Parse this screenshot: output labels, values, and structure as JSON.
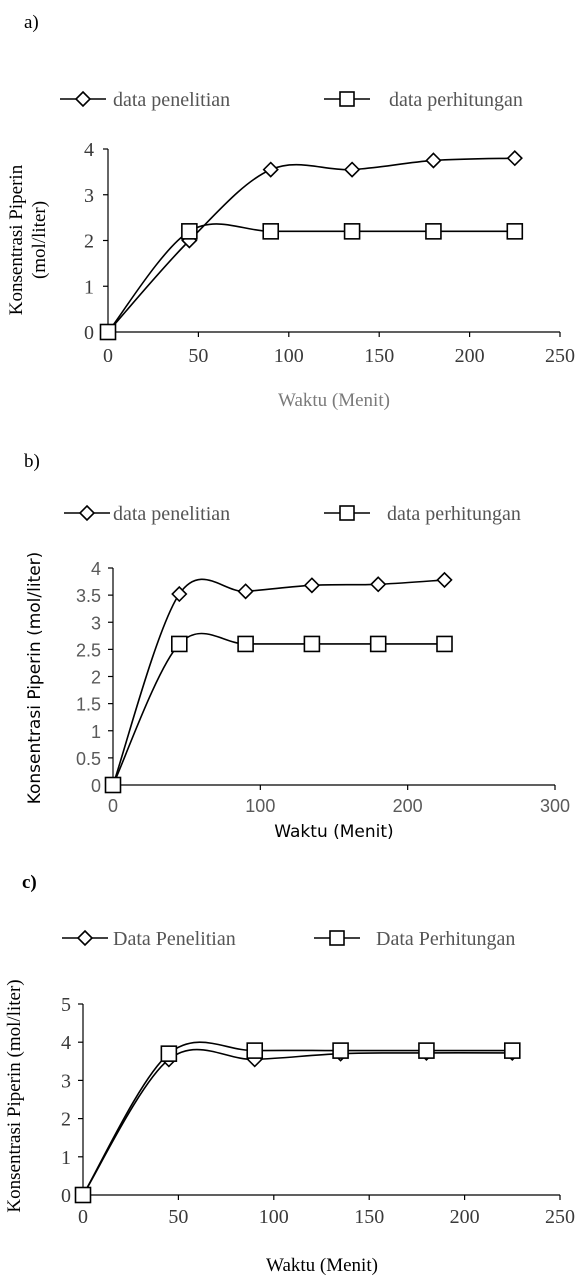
{
  "chart_data": [
    {
      "panel": "a)",
      "type": "line",
      "x": [
        0,
        45,
        90,
        135,
        180,
        225
      ],
      "series": [
        {
          "name": "data penelitian",
          "marker": "diamond",
          "values": [
            0,
            2.0,
            3.55,
            3.55,
            3.75,
            3.8
          ]
        },
        {
          "name": "data perhitungan",
          "marker": "square",
          "values": [
            0,
            2.2,
            2.2,
            2.2,
            2.2,
            2.2
          ]
        }
      ],
      "xlabel": "Waktu (Menit)",
      "ylabel": [
        "Konsentrasi Piperin",
        "(mol/liter)"
      ],
      "xlim": [
        0,
        250
      ],
      "ylim": [
        0,
        4
      ],
      "xticks": [
        "0",
        "50",
        "100",
        "150",
        "200",
        "250"
      ],
      "yticks": [
        "0",
        "1",
        "2",
        "3",
        "4"
      ],
      "grid": false,
      "legend": "top",
      "smooth": true
    },
    {
      "panel": "b)",
      "type": "line",
      "x": [
        0,
        45,
        90,
        135,
        180,
        225
      ],
      "series": [
        {
          "name": "data penelitian",
          "marker": "diamond",
          "values": [
            0,
            3.52,
            3.57,
            3.68,
            3.7,
            3.78
          ]
        },
        {
          "name": "data perhitungan",
          "marker": "square",
          "values": [
            0,
            2.6,
            2.6,
            2.6,
            2.6,
            2.6
          ]
        }
      ],
      "xlabel": "Waktu (Menit)",
      "ylabel": [
        "Konsentrasi Piperin (mol/liter)"
      ],
      "xlim": [
        0,
        300
      ],
      "ylim": [
        0,
        4
      ],
      "xticks": [
        "0",
        "100",
        "200",
        "300"
      ],
      "yticks": [
        "0",
        "0.5",
        "1",
        "1.5",
        "2",
        "2.5",
        "3",
        "3.5",
        "4"
      ],
      "grid": false,
      "legend": "top",
      "smooth": true
    },
    {
      "panel": "c)",
      "type": "line",
      "x": [
        0,
        45,
        90,
        135,
        180,
        225
      ],
      "series": [
        {
          "name": "Data Penelitian",
          "marker": "diamond",
          "values": [
            0,
            3.55,
            3.55,
            3.7,
            3.72,
            3.72
          ]
        },
        {
          "name": "Data Perhitungan",
          "marker": "square",
          "values": [
            0,
            3.7,
            3.78,
            3.78,
            3.78,
            3.78
          ]
        }
      ],
      "xlabel": "Waktu (Menit)",
      "ylabel": [
        "Konsentrasi Piperin (mol/liter)"
      ],
      "xlim": [
        0,
        250
      ],
      "ylim": [
        0,
        5
      ],
      "xticks": [
        "0",
        "50",
        "100",
        "150",
        "200",
        "250"
      ],
      "yticks": [
        "0",
        "1",
        "2",
        "3",
        "4",
        "5"
      ],
      "grid": false,
      "legend": "top",
      "smooth": true
    }
  ]
}
